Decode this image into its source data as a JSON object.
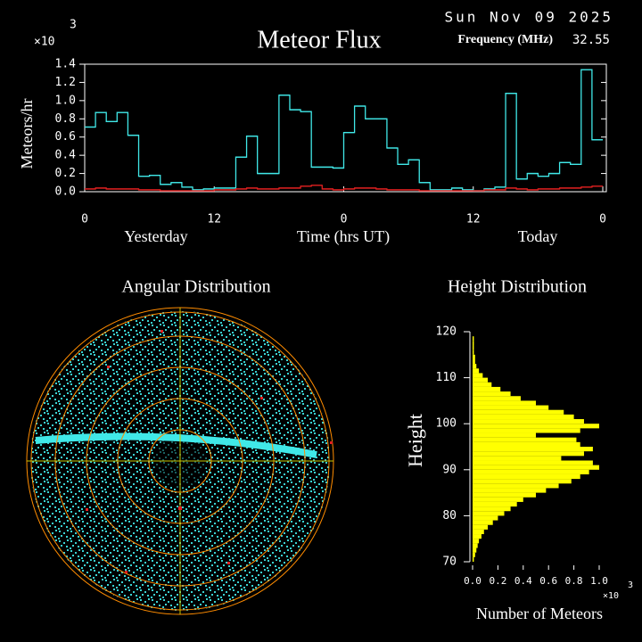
{
  "chart_data": [
    {
      "type": "step",
      "title": "Meteor Flux",
      "date": "Sun Nov 09 2025",
      "frequency_label": "Frequency (MHz)",
      "frequency": "32.55",
      "y_label": "Meteors/hr",
      "y_multiplier": "×10",
      "y_multiplier_exponent": "3",
      "x_label": "Time (hrs UT)",
      "day_labels": [
        "Yesterday",
        "Today"
      ],
      "xlim": [
        0,
        48
      ],
      "xticks": [
        {
          "value": 0,
          "label": "0"
        },
        {
          "value": 12,
          "label": "12"
        },
        {
          "value": 24,
          "label": "0"
        },
        {
          "value": 36,
          "label": "12"
        },
        {
          "value": 48,
          "label": "0"
        }
      ],
      "ylim": [
        0,
        1.4
      ],
      "yticks": [
        {
          "value": 0,
          "label": "0.0"
        },
        0.2,
        0.4,
        0.6,
        0.8,
        {
          "value": 1,
          "label": "1.0"
        },
        1.2,
        1.4
      ],
      "x": [
        0,
        1,
        2,
        3,
        4,
        5,
        6,
        7,
        8,
        9,
        10,
        11,
        12,
        13,
        14,
        15,
        16,
        17,
        18,
        19,
        20,
        21,
        22,
        23,
        24,
        25,
        26,
        27,
        28,
        29,
        30,
        31,
        32,
        33,
        34,
        35,
        36,
        37,
        38,
        39,
        40,
        41,
        42,
        43,
        44,
        45,
        46,
        47
      ],
      "series": [
        {
          "color": "#40e8e8",
          "values": [
            0.71,
            0.87,
            0.77,
            0.87,
            0.62,
            0.17,
            0.18,
            0.08,
            0.1,
            0.05,
            0.02,
            0.03,
            0.04,
            0.04,
            0.38,
            0.61,
            0.2,
            0.2,
            1.06,
            0.9,
            0.88,
            0.27,
            0.27,
            0.26,
            0.65,
            0.94,
            0.8,
            0.8,
            0.48,
            0.3,
            0.35,
            0.1,
            0.02,
            0.02,
            0.04,
            0.02,
            0.01,
            0.03,
            0.05,
            1.08,
            0.14,
            0.2,
            0.17,
            0.2,
            0.32,
            0.3,
            1.34,
            0.57
          ]
        },
        {
          "color": "#e02020",
          "values": [
            0.03,
            0.04,
            0.03,
            0.03,
            0.03,
            0.02,
            0.02,
            0.01,
            0.01,
            0.01,
            0.01,
            0.01,
            0.02,
            0.02,
            0.03,
            0.04,
            0.03,
            0.03,
            0.04,
            0.04,
            0.06,
            0.07,
            0.03,
            0.02,
            0.03,
            0.04,
            0.04,
            0.03,
            0.02,
            0.02,
            0.02,
            0.01,
            0.01,
            0.01,
            0.01,
            0.01,
            0.01,
            0.02,
            0.02,
            0.04,
            0.03,
            0.02,
            0.03,
            0.03,
            0.04,
            0.04,
            0.05,
            0.06
          ]
        }
      ]
    },
    {
      "type": "polar",
      "title": "Angular Distribution"
    },
    {
      "type": "histogram",
      "orientation": "horizontal",
      "title": "Height Distribution",
      "y_label": "Height",
      "x_label": "Number of Meteors",
      "x_multiplier": "×10",
      "x_multiplier_exponent": "3",
      "color": "#ffff00",
      "bins": [
        70,
        71,
        72,
        73,
        74,
        75,
        76,
        77,
        78,
        79,
        80,
        81,
        82,
        83,
        84,
        85,
        86,
        87,
        88,
        89,
        90,
        91,
        92,
        93,
        94,
        95,
        96,
        97,
        98,
        99,
        100,
        101,
        102,
        103,
        104,
        105,
        106,
        107,
        108,
        109,
        110,
        111,
        112,
        113,
        114,
        115,
        116,
        117,
        118,
        119,
        120
      ],
      "values": [
        0.01,
        0.02,
        0.03,
        0.04,
        0.05,
        0.07,
        0.09,
        0.12,
        0.16,
        0.2,
        0.25,
        0.3,
        0.35,
        0.4,
        0.5,
        0.58,
        0.68,
        0.78,
        0.85,
        0.92,
        1.0,
        0.95,
        0.7,
        0.88,
        0.95,
        0.85,
        0.82,
        0.5,
        0.85,
        1.0,
        0.88,
        0.8,
        0.72,
        0.6,
        0.5,
        0.38,
        0.3,
        0.22,
        0.15,
        0.12,
        0.08,
        0.05,
        0.03,
        0.02,
        0.02,
        0.01,
        0.01,
        0.01,
        0.01,
        0.0
      ],
      "xlim": [
        0,
        1.0
      ],
      "xticks": [
        {
          "value": 0,
          "label": "0.0"
        },
        0.2,
        0.4,
        0.6,
        0.8,
        {
          "value": 1,
          "label": "1.0"
        }
      ],
      "ylim": [
        70,
        120
      ],
      "yticks": [
        70,
        80,
        90,
        100,
        110,
        120
      ]
    }
  ]
}
